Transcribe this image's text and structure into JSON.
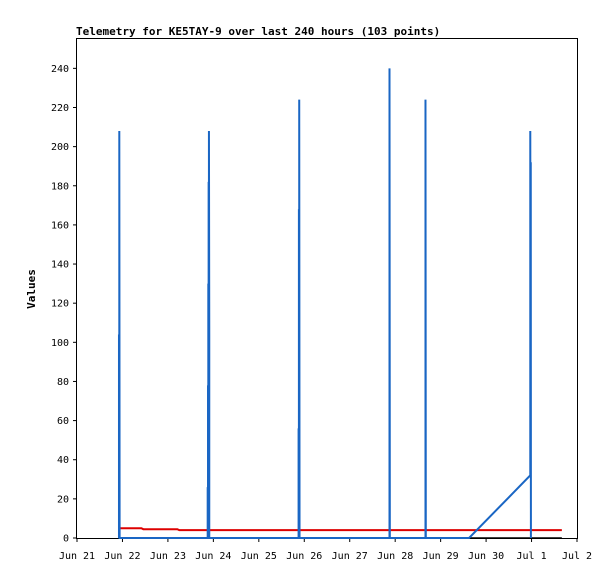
{
  "chart_data": {
    "type": "line",
    "title": "Telemetry for KE5TAY-9 over last 240 hours (103 points)",
    "xlabel": "",
    "ylabel": "Values",
    "ylim": [
      0,
      255
    ],
    "yticks": [
      0,
      20,
      40,
      60,
      80,
      100,
      120,
      140,
      160,
      180,
      200,
      220,
      240
    ],
    "xlim": [
      "Jun 21 00:00",
      "Jul 2 00:00"
    ],
    "xticks": [
      "Jun 21",
      "Jun 22",
      "Jun 23",
      "Jun 24",
      "Jun 25",
      "Jun 26",
      "Jun 27",
      "Jun 28",
      "Jun 29",
      "Jun 30",
      "Jul 1",
      "Jul 2"
    ],
    "grid": false,
    "colors": {
      "blue": "#1a66c4",
      "red": "#dd0000",
      "black": "#000000"
    },
    "series": [
      {
        "color": "#1a66c4",
        "points": [
          [
            "Jun 21 22:10",
            0
          ],
          [
            "Jun 21 22:10",
            104
          ],
          [
            "Jun 21 22:20",
            0
          ],
          [
            "Jun 21 22:20",
            208
          ],
          [
            "Jun 21 22:30",
            0
          ],
          [
            "Jun 23 21:00",
            0
          ],
          [
            "Jun 23 21:00",
            26
          ],
          [
            "Jun 23 21:10",
            0
          ],
          [
            "Jun 23 21:10",
            78
          ],
          [
            "Jun 23 21:20",
            0
          ],
          [
            "Jun 23 21:20",
            130
          ],
          [
            "Jun 23 21:30",
            0
          ],
          [
            "Jun 23 21:30",
            182
          ],
          [
            "Jun 23 21:40",
            0
          ],
          [
            "Jun 23 21:40",
            208
          ],
          [
            "Jun 23 21:50",
            104
          ],
          [
            "Jun 23 21:50",
            0
          ],
          [
            "Jun 25 21:00",
            0
          ],
          [
            "Jun 25 21:00",
            56
          ],
          [
            "Jun 25 21:10",
            0
          ],
          [
            "Jun 25 21:10",
            168
          ],
          [
            "Jun 25 21:20",
            0
          ],
          [
            "Jun 25 21:20",
            224
          ],
          [
            "Jun 25 21:30",
            0
          ],
          [
            "Jun 27 21:00",
            0
          ],
          [
            "Jun 27 21:00",
            240
          ],
          [
            "Jun 27 21:10",
            0
          ],
          [
            "Jun 28 16:00",
            0
          ],
          [
            "Jun 28 16:00",
            224
          ],
          [
            "Jun 28 16:10",
            0
          ],
          [
            "Jun 29 15:00",
            0
          ],
          [
            "Jun 30 23:20",
            32
          ],
          [
            "Jun 30 23:20",
            208
          ],
          [
            "Jun 30 23:30",
            32
          ],
          [
            "Jun 30 23:35",
            192
          ],
          [
            "Jun 30 23:40",
            0
          ]
        ]
      },
      {
        "color": "#dd0000",
        "points": [
          [
            "Jun 21 22:00",
            5
          ],
          [
            "Jun 22 10:00",
            5
          ],
          [
            "Jun 22 11:00",
            4.5
          ],
          [
            "Jun 23 05:00",
            4.5
          ],
          [
            "Jun 23 06:00",
            4
          ],
          [
            "Jul 1 16:00",
            4
          ]
        ]
      },
      {
        "color": "#000000",
        "points": [
          [
            "Jun 21 22:00",
            0
          ],
          [
            "Jul 1 16:00",
            0
          ]
        ]
      }
    ]
  }
}
